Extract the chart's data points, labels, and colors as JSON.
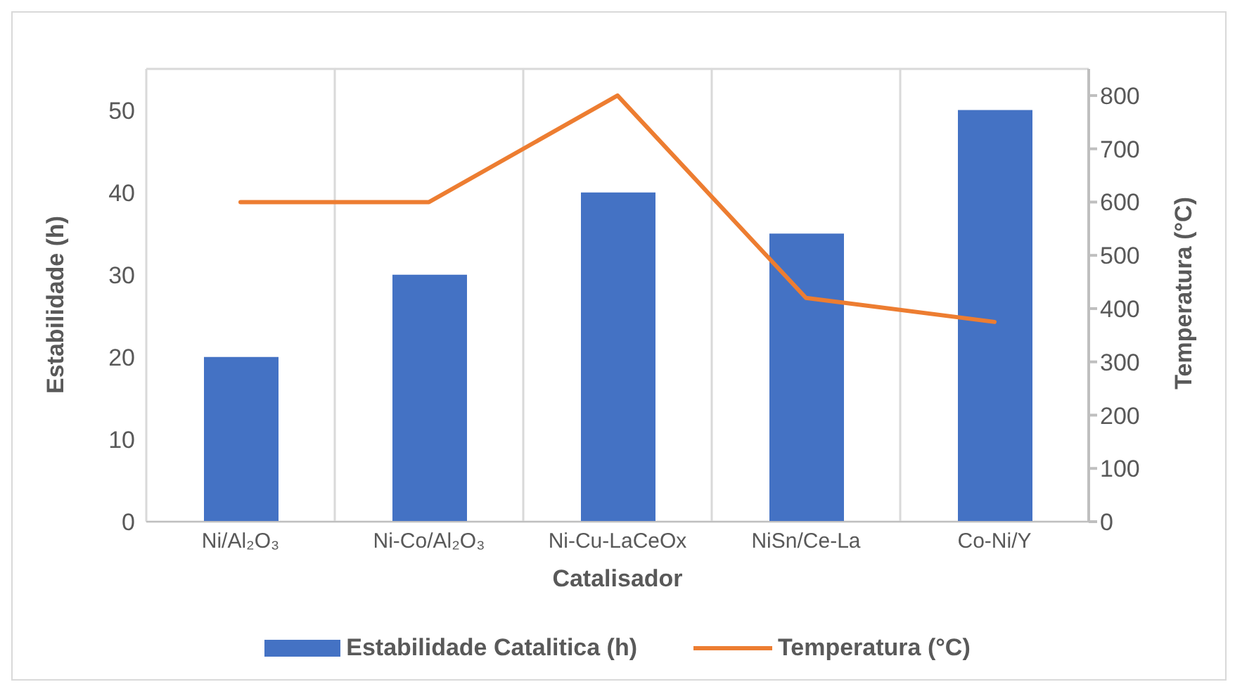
{
  "chart_data": {
    "type": "bar",
    "xlabel": "Catalisador",
    "ylabel": "Estabilidade (h)",
    "y2label": "Temperatura (°C)",
    "categories": [
      "Ni/Al₂O₃",
      "Ni-Co/Al₂O₃",
      "Ni-Cu-LaCeOx",
      "NiSn/Ce-La",
      "Co-Ni/Y"
    ],
    "series": [
      {
        "name": "Estabilidade Catalitica (h)",
        "color": "#4472c4",
        "values": [
          20,
          30,
          40,
          35,
          50
        ]
      },
      {
        "name": "Temperatura (°C)",
        "type": "line",
        "axis": "y2",
        "color": "#ed7d31",
        "values": [
          600,
          600,
          800,
          420,
          375
        ]
      }
    ],
    "ylim": [
      0,
      55
    ],
    "yticks": [
      0,
      10,
      20,
      30,
      40,
      50
    ],
    "y2lim": [
      0,
      850
    ],
    "y2ticks": [
      0,
      100,
      200,
      300,
      400,
      500,
      600,
      700,
      800
    ],
    "grid": true,
    "legend": "bottom",
    "marker": "none",
    "line_style": "solid"
  }
}
